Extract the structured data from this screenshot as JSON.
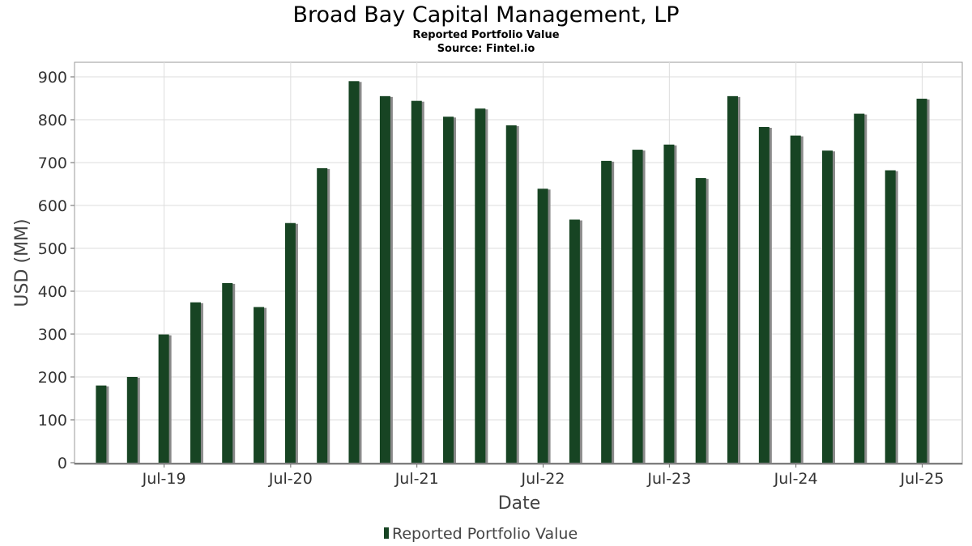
{
  "chart_data": {
    "type": "bar",
    "title": "Broad Bay Capital Management, LP",
    "subtitle": "Reported Portfolio Value",
    "source": "Source: Fintel.io",
    "xlabel": "Date",
    "ylabel": "USD (MM)",
    "ylim": [
      0,
      930
    ],
    "yticks": [
      0,
      100,
      200,
      300,
      400,
      500,
      600,
      700,
      800,
      900
    ],
    "xlim": [
      "2018-10-15",
      "2025-10-25"
    ],
    "xticks": [
      {
        "date": "2019-07-01",
        "label": "Jul-19"
      },
      {
        "date": "2020-07-01",
        "label": "Jul-20"
      },
      {
        "date": "2021-07-01",
        "label": "Jul-21"
      },
      {
        "date": "2022-07-01",
        "label": "Jul-22"
      },
      {
        "date": "2023-07-01",
        "label": "Jul-23"
      },
      {
        "date": "2024-07-01",
        "label": "Jul-24"
      },
      {
        "date": "2025-07-01",
        "label": "Jul-25"
      }
    ],
    "grid": true,
    "legend_position": "bottom",
    "colors": {
      "bar": "#174423",
      "shadow": "#8a8a8a",
      "grid": "#dddddd",
      "axis": "#666666"
    },
    "series": [
      {
        "name": "Reported Portfolio Value",
        "points": [
          {
            "x": "2018-12-31",
            "y": 180
          },
          {
            "x": "2019-03-31",
            "y": 200
          },
          {
            "x": "2019-06-30",
            "y": 299
          },
          {
            "x": "2019-09-30",
            "y": 374
          },
          {
            "x": "2019-12-31",
            "y": 419
          },
          {
            "x": "2020-03-31",
            "y": 363
          },
          {
            "x": "2020-06-30",
            "y": 559
          },
          {
            "x": "2020-09-30",
            "y": 687
          },
          {
            "x": "2020-12-31",
            "y": 890
          },
          {
            "x": "2021-03-31",
            "y": 855
          },
          {
            "x": "2021-06-30",
            "y": 844
          },
          {
            "x": "2021-09-30",
            "y": 807
          },
          {
            "x": "2021-12-31",
            "y": 826
          },
          {
            "x": "2022-03-31",
            "y": 787
          },
          {
            "x": "2022-06-30",
            "y": 639
          },
          {
            "x": "2022-09-30",
            "y": 567
          },
          {
            "x": "2022-12-31",
            "y": 704
          },
          {
            "x": "2023-03-31",
            "y": 730
          },
          {
            "x": "2023-06-30",
            "y": 742
          },
          {
            "x": "2023-09-30",
            "y": 664
          },
          {
            "x": "2023-12-31",
            "y": 855
          },
          {
            "x": "2024-03-31",
            "y": 783
          },
          {
            "x": "2024-06-30",
            "y": 763
          },
          {
            "x": "2024-09-30",
            "y": 728
          },
          {
            "x": "2024-12-31",
            "y": 814
          },
          {
            "x": "2025-03-31",
            "y": 682
          },
          {
            "x": "2025-06-30",
            "y": 849
          }
        ]
      }
    ]
  }
}
